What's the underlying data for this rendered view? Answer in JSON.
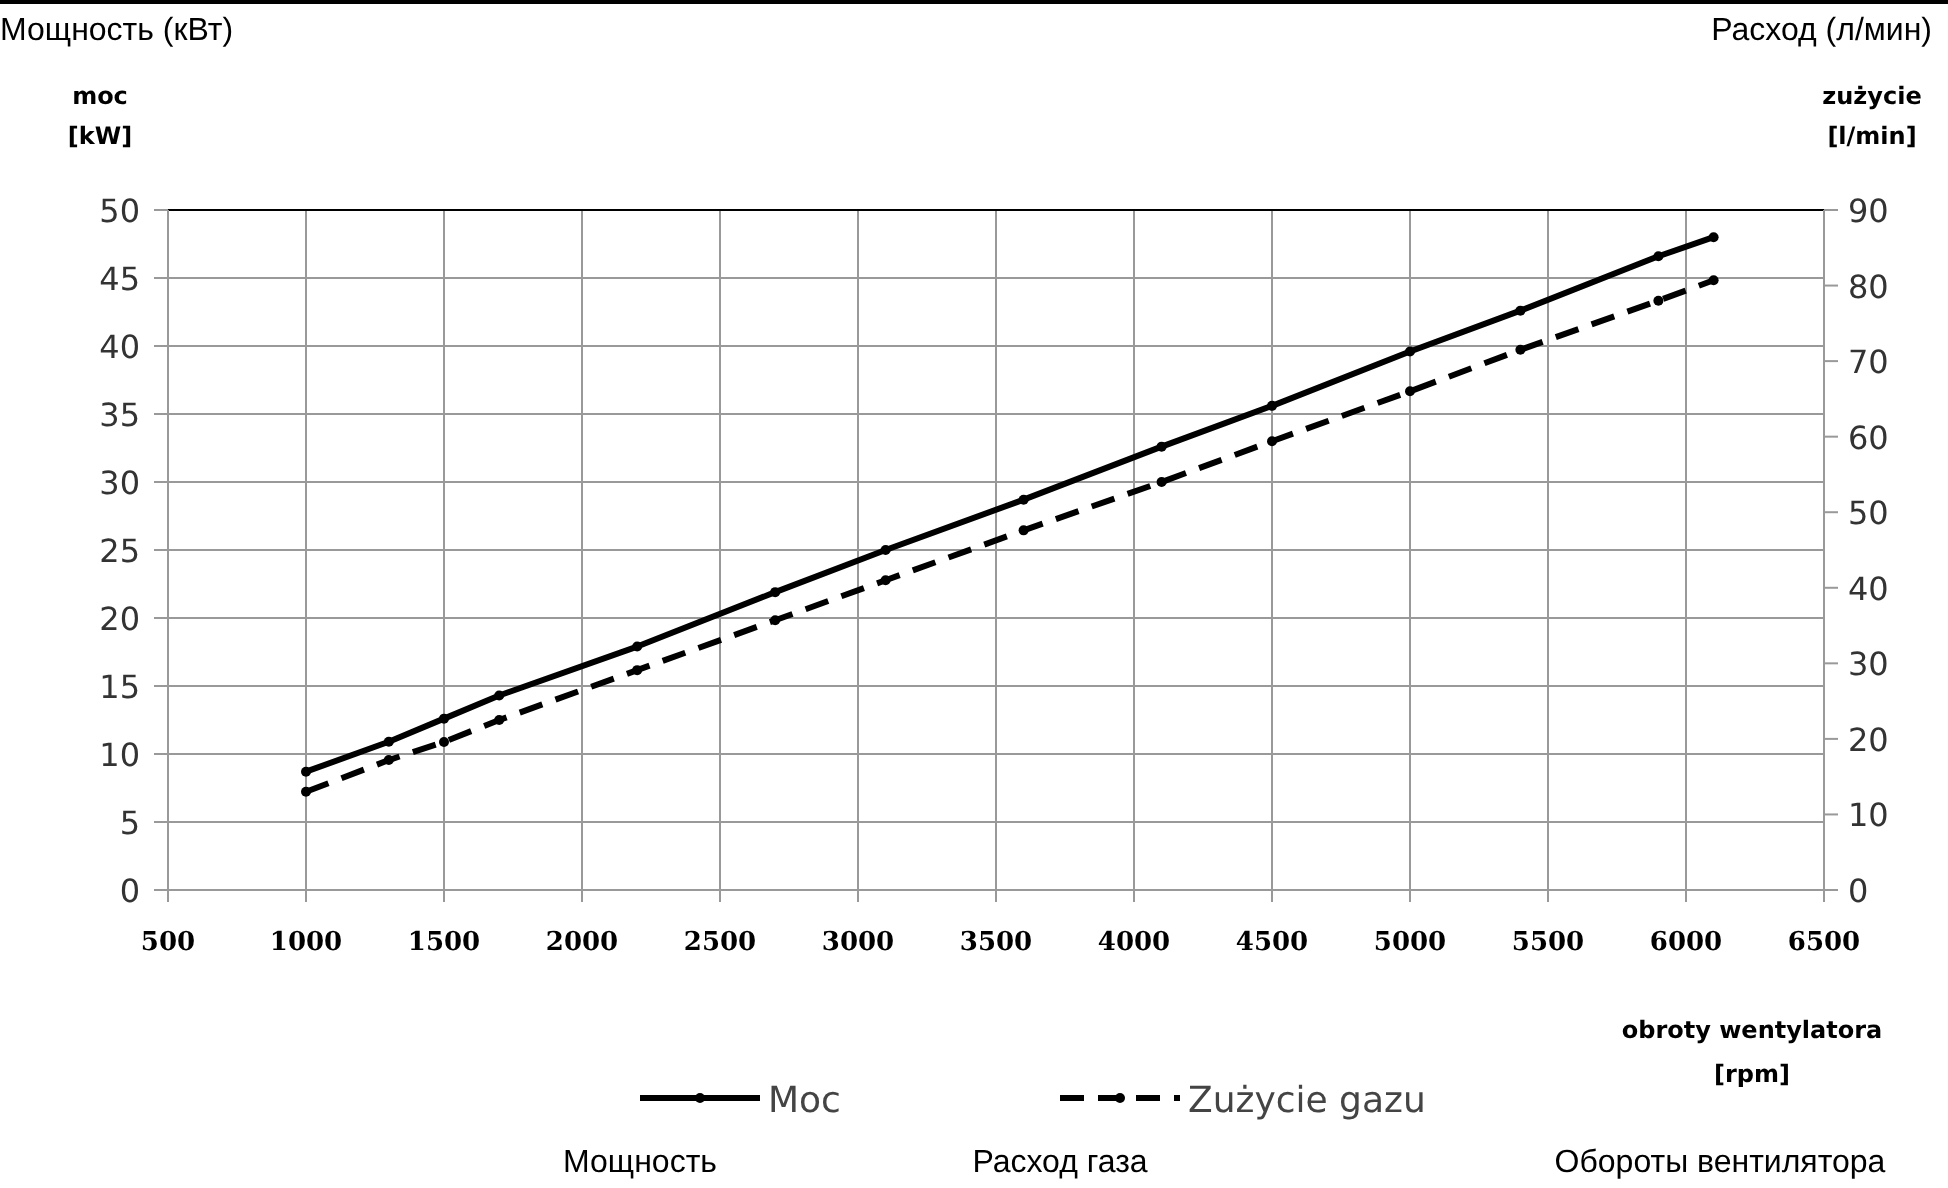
{
  "chart_data": {
    "type": "line",
    "xlabel": "obroty wentylatora [rpm]",
    "ylabel": "moc [kW]",
    "y2label": "zużycie [l/min]",
    "x": [
      1000,
      1300,
      1500,
      1700,
      2200,
      2700,
      3100,
      3600,
      4100,
      4500,
      5000,
      5400,
      5900,
      6100
    ],
    "series": [
      {
        "name": "Moc",
        "color": "#000000",
        "line_style": "solid",
        "values": [
          8.7,
          10.9,
          12.6,
          14.3,
          17.9,
          21.9,
          25,
          28.7,
          32.6,
          35.6,
          39.6,
          42.6,
          46.6,
          48
        ]
      },
      {
        "name": "Zużycie gazu",
        "color": "#000000",
        "line_style": "dashed",
        "axis": "y2",
        "values": [
          13,
          17.2,
          19.6,
          22.5,
          29.1,
          35.7,
          41,
          47.6,
          54,
          59.4,
          66,
          71.5,
          78,
          80.7
        ]
      }
    ],
    "xlim": [
      500,
      6500
    ],
    "xticks": [
      500,
      1000,
      1500,
      2000,
      2500,
      3000,
      3500,
      4000,
      4500,
      5000,
      5500,
      6000,
      6500
    ],
    "ylim": [
      0,
      50
    ],
    "yticks": [
      0,
      5,
      10,
      15,
      20,
      25,
      30,
      35,
      40,
      45,
      50
    ],
    "y2lim": [
      0,
      90
    ],
    "y2ticks": [
      0,
      10,
      20,
      30,
      40,
      50,
      60,
      70,
      80,
      90
    ],
    "grid": true,
    "legend": "bottom",
    "marker": "circle",
    "annotations": [
      "Мощность (кВт)",
      "Расход (л/мин)",
      "Мощность",
      "Расход газа",
      "Обороты вентилятора"
    ]
  }
}
